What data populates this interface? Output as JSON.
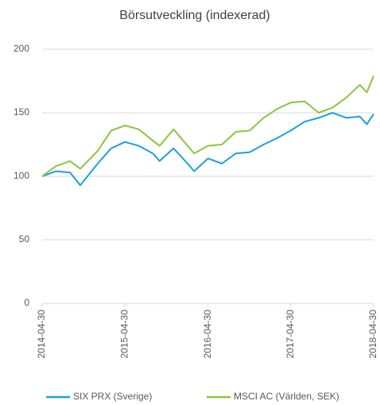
{
  "chart_data": {
    "type": "line",
    "title": "Börsutveckling (indexerad)",
    "x": [
      "2014-04-30",
      "2014-06-30",
      "2014-08-31",
      "2014-10-15",
      "2014-12-31",
      "2015-02-28",
      "2015-04-30",
      "2015-06-30",
      "2015-08-31",
      "2015-09-30",
      "2015-11-30",
      "2016-01-31",
      "2016-02-29",
      "2016-04-30",
      "2016-06-30",
      "2016-08-31",
      "2016-10-31",
      "2016-12-31",
      "2017-02-28",
      "2017-04-30",
      "2017-06-30",
      "2017-08-31",
      "2017-10-31",
      "2017-12-31",
      "2018-02-28",
      "2018-03-31",
      "2018-04-30"
    ],
    "series": [
      {
        "name": "SIX PRX (Sverige)",
        "color": "#1ea0dc",
        "values": [
          100,
          104,
          103,
          93,
          110,
          122,
          127,
          124,
          118,
          112,
          122,
          110,
          104,
          114,
          110,
          118,
          119,
          125,
          130,
          136,
          143,
          146,
          150,
          146,
          147,
          141,
          149
        ]
      },
      {
        "name": "MSCI AC (Världen, SEK)",
        "color": "#8cc63e",
        "values": [
          100,
          108,
          112,
          106,
          120,
          136,
          140,
          137,
          128,
          124,
          137,
          124,
          118,
          124,
          125,
          135,
          136,
          146,
          153,
          158,
          159,
          150,
          154,
          162,
          172,
          166,
          179
        ]
      }
    ],
    "xlim": [
      "2014-04-30",
      "2018-04-30"
    ],
    "xticks": [
      "2014-04-30",
      "2015-04-30",
      "2016-04-30",
      "2017-04-30",
      "2018-04-30"
    ],
    "ylim": [
      0,
      200
    ],
    "yticks": [
      0,
      50,
      100,
      150,
      200
    ],
    "grid": true,
    "legend": "bottom"
  }
}
